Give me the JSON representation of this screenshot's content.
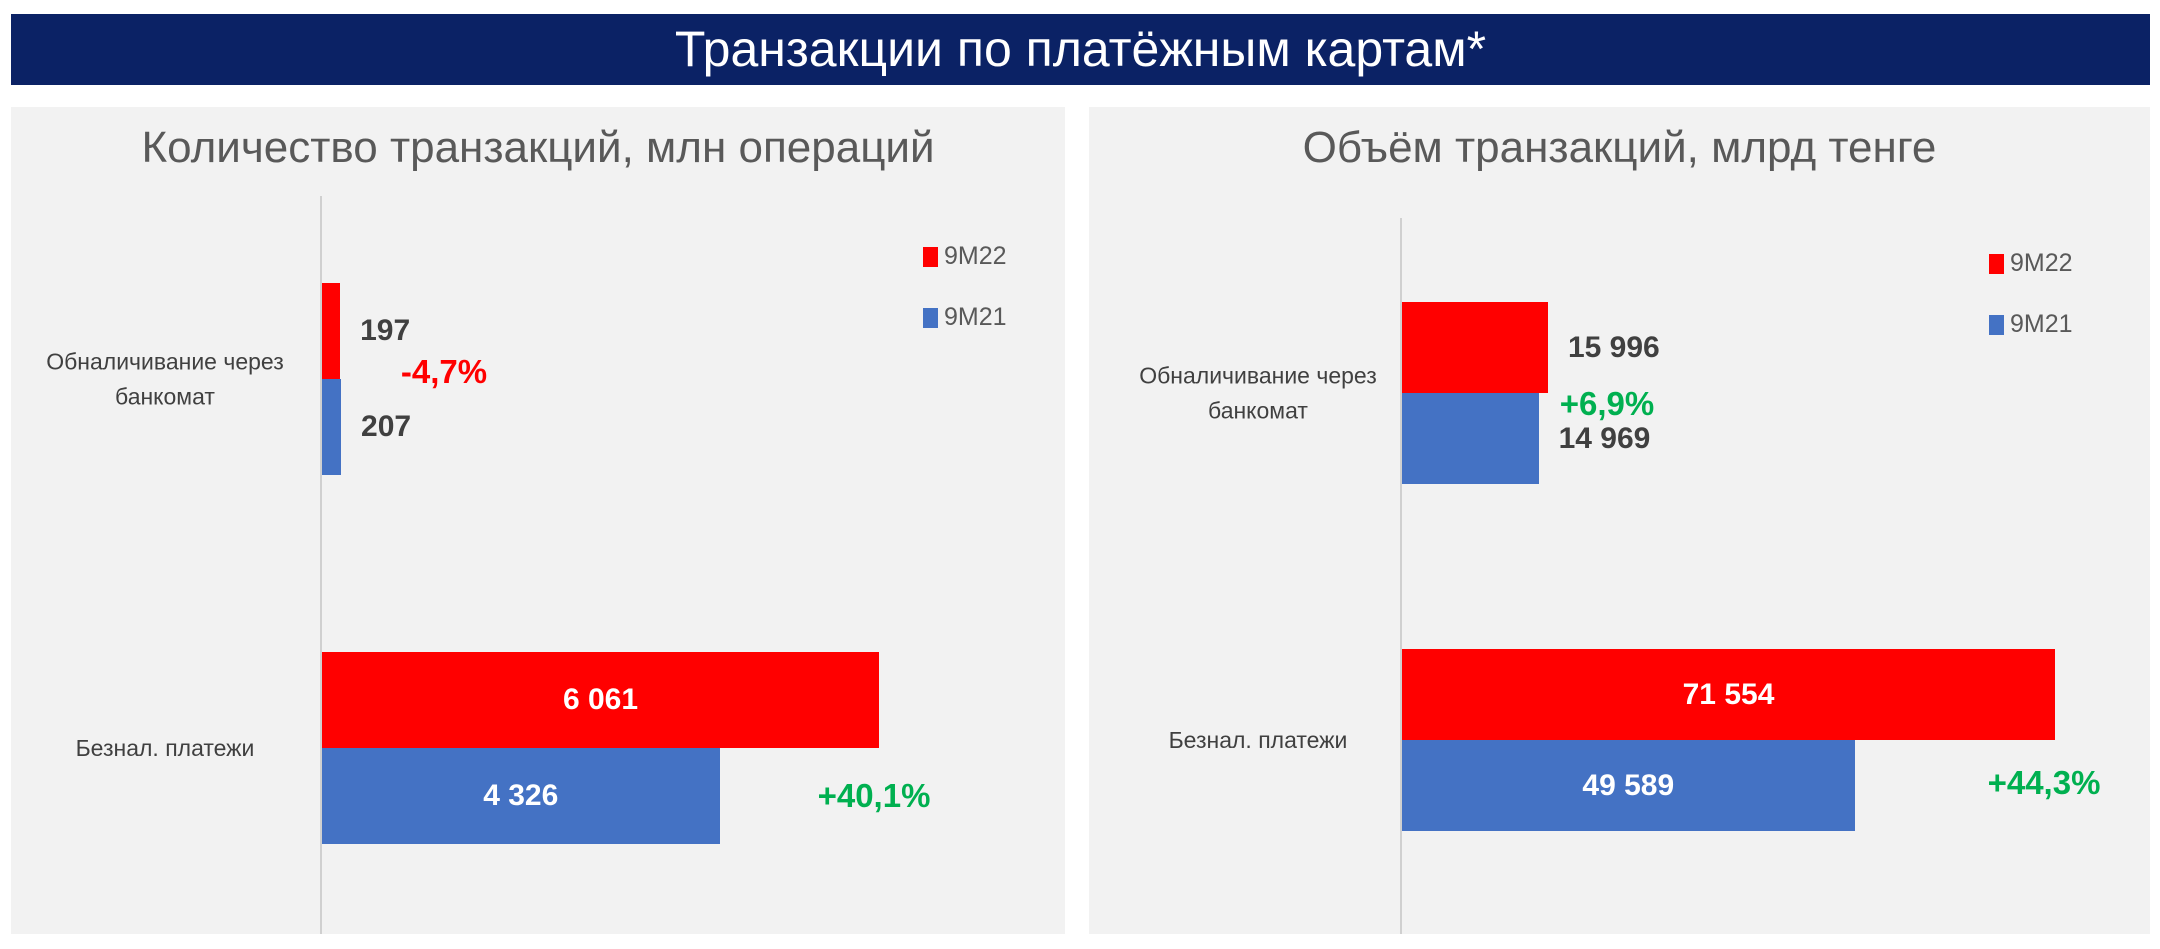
{
  "title": "Транзакции по платёжным картам*",
  "chart_data": [
    {
      "type": "bar",
      "orientation": "horizontal",
      "title": "Количество транзакций, млн операций",
      "categories": [
        "Обналичивание через банкомат",
        "Безнал. платежи"
      ],
      "series": [
        {
          "name": "9M22",
          "color": "#ff0000",
          "values": [
            197,
            6061
          ],
          "value_labels": [
            "197",
            "6 061"
          ]
        },
        {
          "name": "9M21",
          "color": "#4472c4",
          "values": [
            207,
            4326
          ],
          "value_labels": [
            "207",
            "4 326"
          ]
        }
      ],
      "annotations": [
        {
          "text": "-4,7%",
          "color": "#ff0000"
        },
        {
          "text": "+40,1%",
          "color": "#00b050"
        }
      ]
    },
    {
      "type": "bar",
      "orientation": "horizontal",
      "title": "Объём транзакций, млрд тенге",
      "categories": [
        "Обналичивание через банкомат",
        "Безнал. платежи"
      ],
      "series": [
        {
          "name": "9M22",
          "color": "#ff0000",
          "values": [
            15996,
            71554
          ],
          "value_labels": [
            "15 996",
            "71 554"
          ]
        },
        {
          "name": "9M21",
          "color": "#4472c4",
          "values": [
            14969,
            49589
          ],
          "value_labels": [
            "14 969",
            "49 589"
          ]
        }
      ],
      "annotations": [
        {
          "text": "+6,9%",
          "color": "#00b050"
        },
        {
          "text": "+44,3%",
          "color": "#00b050"
        }
      ]
    }
  ]
}
